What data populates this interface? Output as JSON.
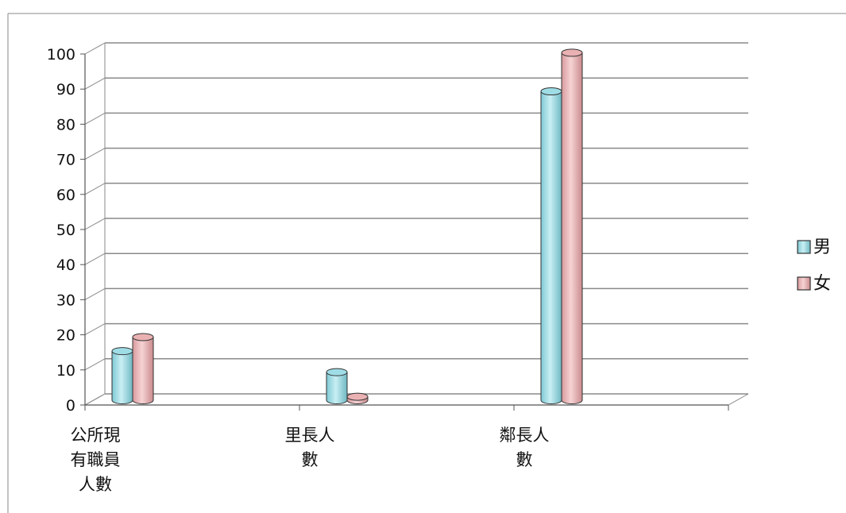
{
  "chart_data": {
    "type": "bar",
    "categories": [
      [
        "公所現",
        "有職員",
        "人數"
      ],
      [
        "里長人",
        "數"
      ],
      [
        "鄰長人",
        "數"
      ]
    ],
    "series": [
      {
        "name": "男",
        "values": [
          14,
          8,
          88
        ],
        "color": "#9fdde6"
      },
      {
        "name": "女",
        "values": [
          18,
          1,
          99
        ],
        "color": "#eab1b3"
      }
    ],
    "ylim": [
      0,
      100
    ],
    "yticks": [
      0,
      10,
      20,
      30,
      40,
      50,
      60,
      70,
      80,
      90,
      100
    ],
    "grid": true,
    "legend_position": "right",
    "bar_style": "3d-cylinder"
  }
}
